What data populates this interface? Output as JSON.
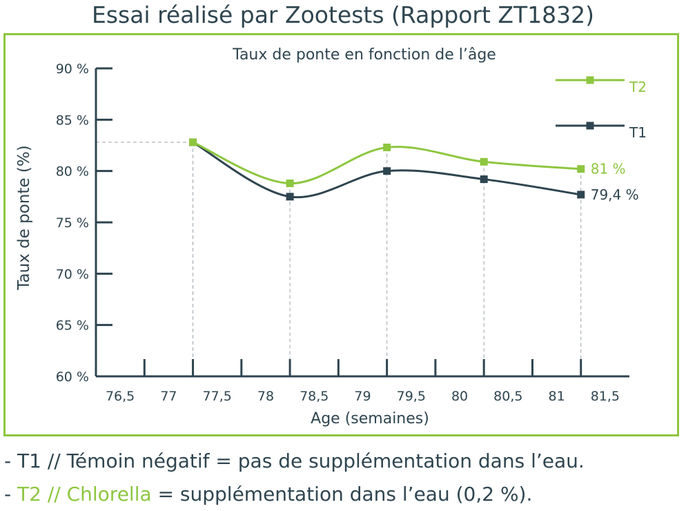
{
  "header": {
    "title": "Essai réalisé par Zootests (Rapport ZT1832)"
  },
  "chart_data": {
    "type": "line",
    "title": "Taux de ponte en fonction de l’âge",
    "xlabel": "Age (semaines)",
    "ylabel": "Taux de ponte (%)",
    "xlim": [
      76.25,
      81.75
    ],
    "ylim": [
      60,
      90
    ],
    "xticks": [
      76.5,
      77,
      77.5,
      78,
      78.5,
      79,
      79.5,
      80,
      80.5,
      81,
      81.5
    ],
    "xtick_labels": [
      "76,5",
      "77",
      "77,5",
      "78",
      "78,5",
      "79",
      "79,5",
      "80",
      "80,5",
      "81",
      "81,5"
    ],
    "yticks": [
      60,
      65,
      70,
      75,
      80,
      85,
      90
    ],
    "ytick_labels": [
      "60 %",
      "65 %",
      "70 %",
      "75 %",
      "80 %",
      "85 %",
      "90 %"
    ],
    "series": [
      {
        "name": "T2",
        "color": "#8dc63f",
        "x": [
          77.25,
          78.25,
          79.25,
          80.25,
          81.25
        ],
        "values": [
          82.8,
          78.8,
          82.3,
          80.9,
          80.2
        ],
        "end_label": "81 %"
      },
      {
        "name": "T1",
        "color": "#2f4550",
        "x": [
          77.25,
          78.25,
          79.25,
          80.25,
          81.25
        ],
        "values": [
          82.8,
          77.5,
          80.0,
          79.2,
          77.7
        ],
        "end_label": "79,4 %"
      }
    ],
    "legend_position": "top-right",
    "grid": false
  },
  "notes": {
    "line1": "- T1 // Témoin négatif = pas de supplémentation dans l’eau.",
    "line2_prefix": " - ",
    "line2_highlight": "T2 // Chlorella",
    "line2_rest": " = supplémentation dans l’eau (0,2 %)."
  }
}
